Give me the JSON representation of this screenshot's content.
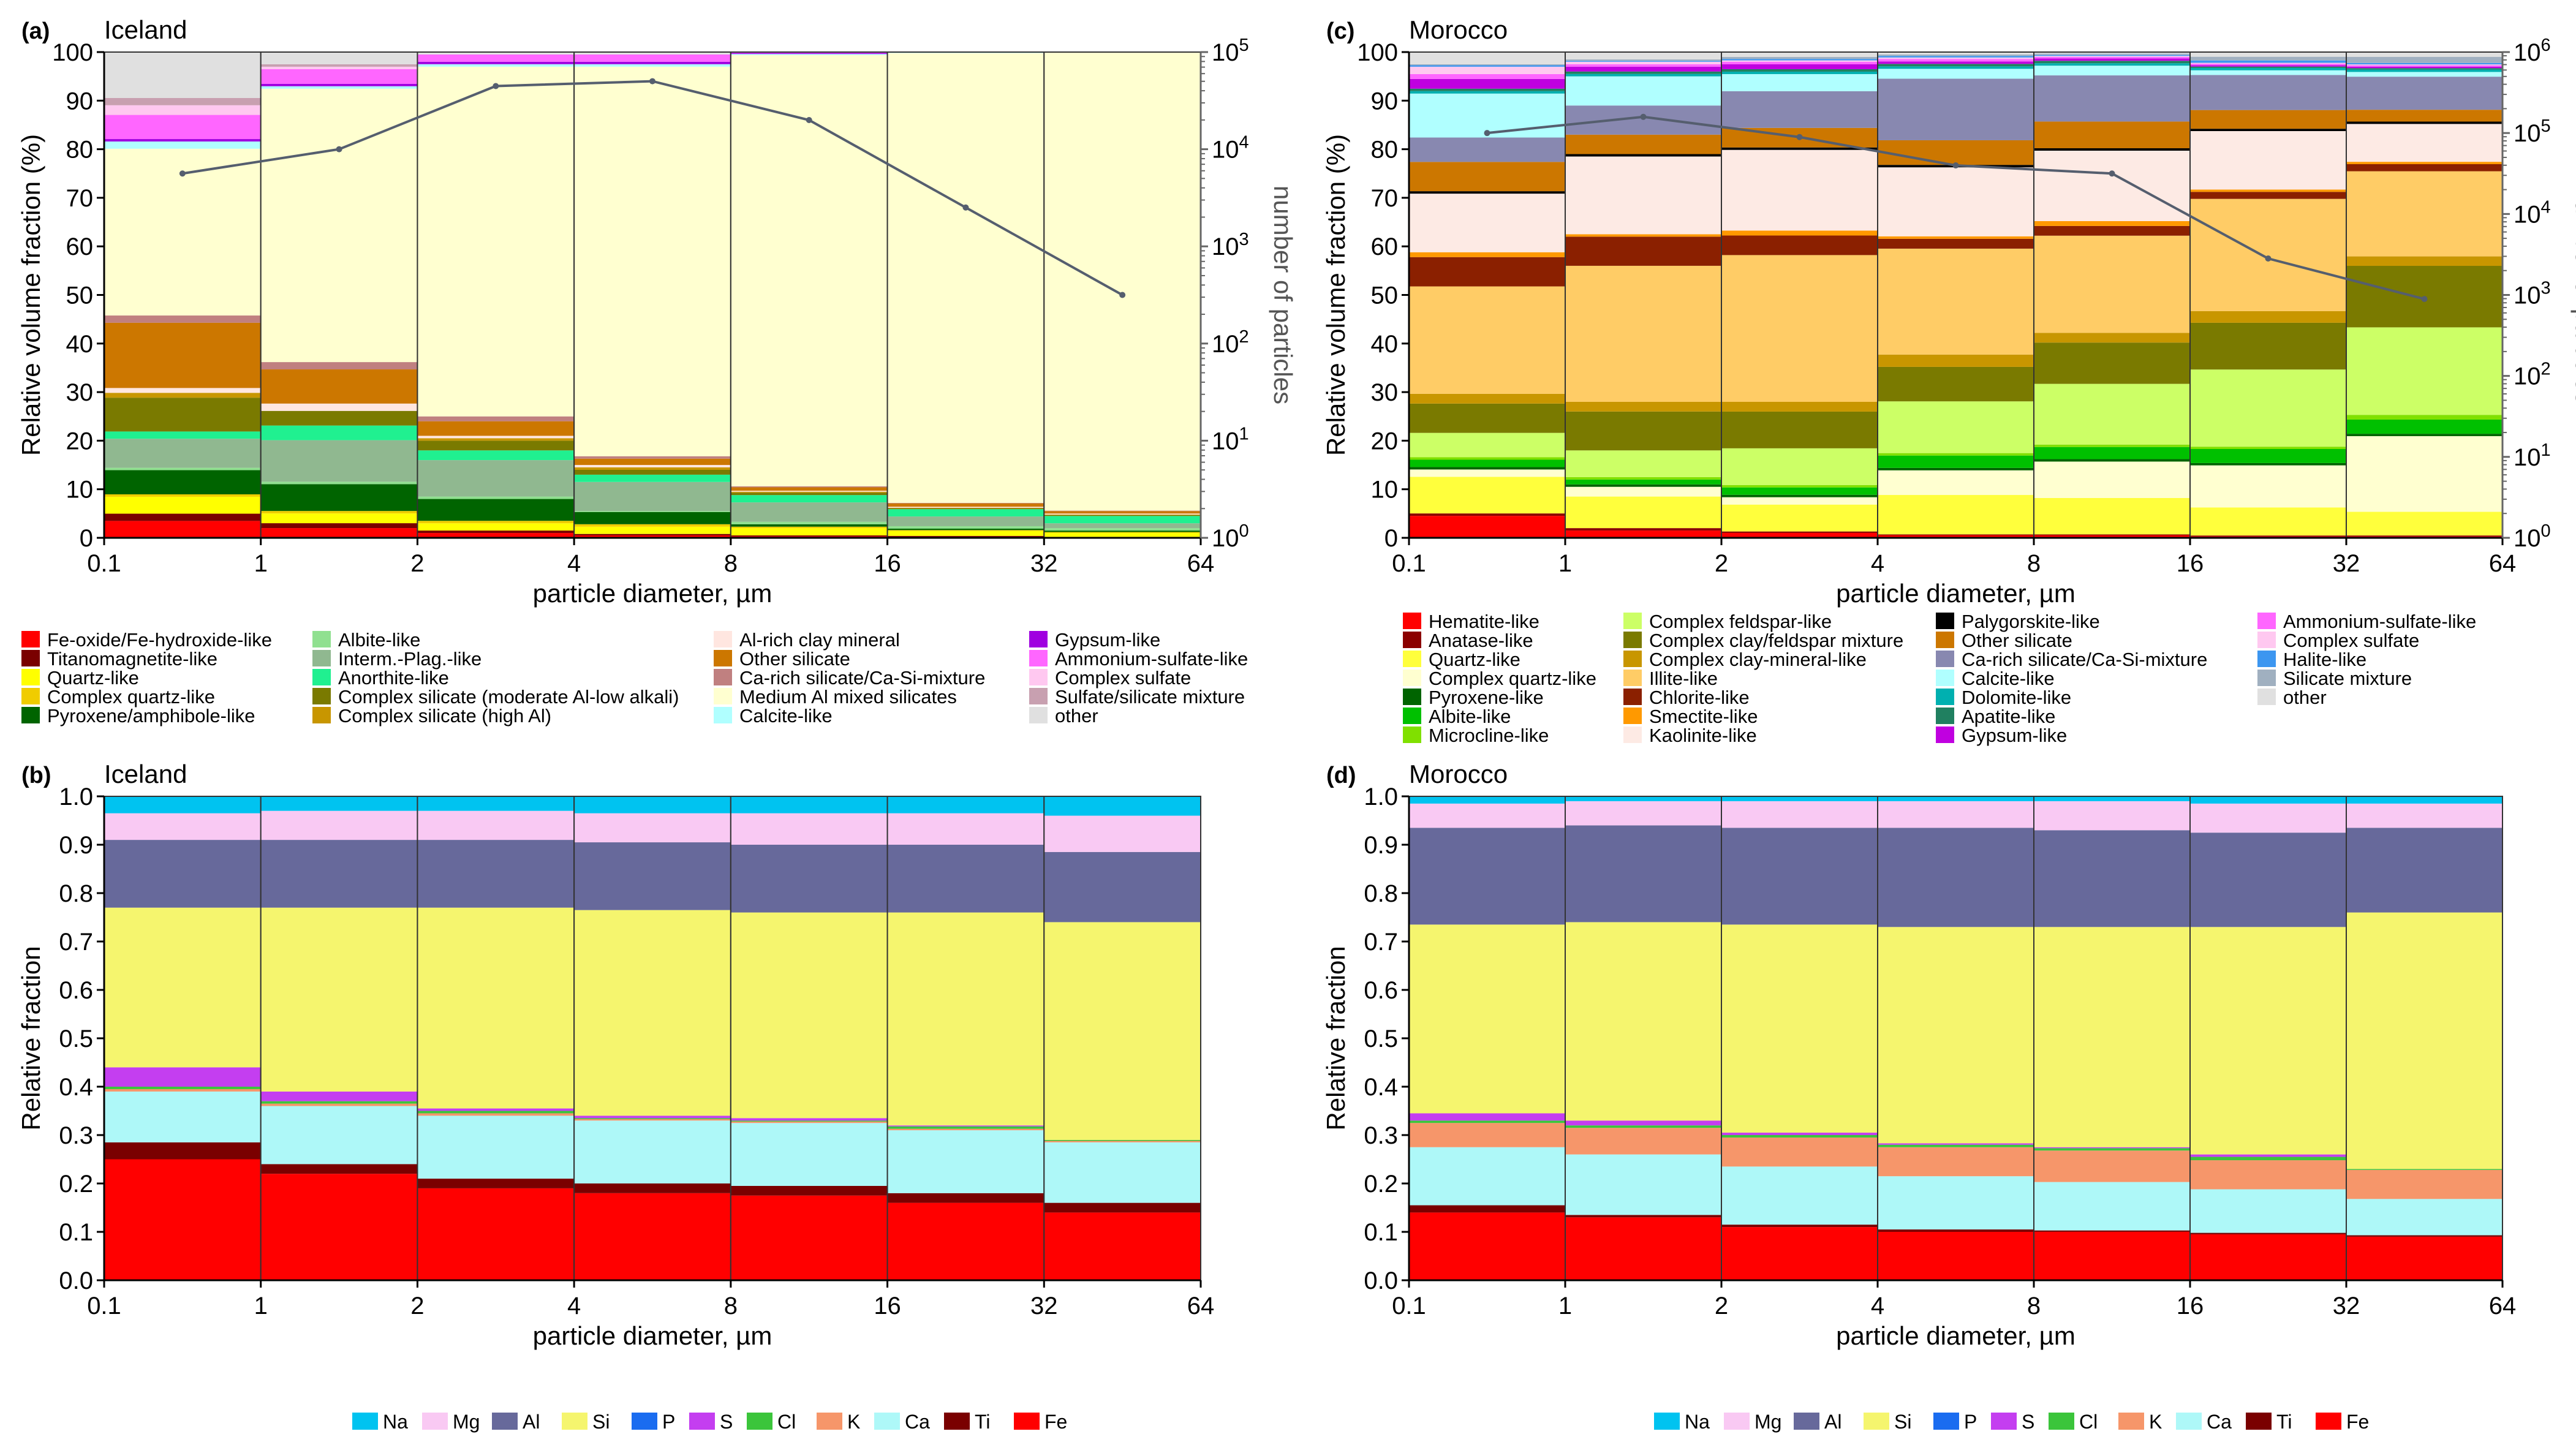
{
  "figure": {
    "element_legend": [
      "Na",
      "Mg",
      "Al",
      "Si",
      "P",
      "S",
      "Cl",
      "K",
      "Ca",
      "Ti",
      "Fe"
    ],
    "element_colors": [
      "#00c3f0",
      "#f9c9f3",
      "#67699b",
      "#f5f56e",
      "#1a6cf0",
      "#c43ef0",
      "#3bc53b",
      "#f6966a",
      "#aef8f8",
      "#7a0000",
      "#ff0000"
    ]
  },
  "chart_data": [
    {
      "id": "a",
      "panel_label": "(a)",
      "title": "Iceland",
      "type": "bar",
      "xlabel": "particle diameter, µm",
      "ylabel": "Relative volume fraction (%)",
      "y2label": "number of particles",
      "xticks": [
        "0.1",
        "1",
        "2",
        "4",
        "8",
        "16",
        "32",
        "64"
      ],
      "yticks": [
        "0",
        "10",
        "20",
        "30",
        "40",
        "50",
        "60",
        "70",
        "80",
        "90",
        "100"
      ],
      "ylim": [
        0,
        100
      ],
      "y2ticks": [
        "10^0",
        "10^1",
        "10^2",
        "10^3",
        "10^4",
        "10^5"
      ],
      "y2lim_log10": [
        0,
        5
      ],
      "categories": [
        "0.1-1",
        "1-2",
        "2-4",
        "4-8",
        "8-16",
        "16-32",
        "32-64"
      ],
      "classes": [
        "Fe-oxide/Fe-hydroxide-like",
        "Titanomagnetite-like",
        "Quartz-like",
        "Complex quartz-like",
        "Pyroxene/amphibole-like",
        "Albite-like",
        "Interm.-Plag.-like",
        "Anorthite-like",
        "Complex silicate (moderate Al-low alkali)",
        "Complex silicate (high Al)",
        "Al-rich clay mineral",
        "Other silicate",
        "Ca-rich silicate/Ca-Si-mixture",
        "Medium Al mixed silicates",
        "Calcite-like",
        "Gypsum-like",
        "Ammonium-sulfate-like",
        "Complex sulfate",
        "Sulfate/silicate mixture",
        "other"
      ],
      "colors": [
        "#ff0000",
        "#7a0000",
        "#ffff00",
        "#f0cc00",
        "#006400",
        "#90e090",
        "#90b890",
        "#20f090",
        "#7a7a00",
        "#c89600",
        "#ffe6e0",
        "#cc7700",
        "#c08080",
        "#ffffd0",
        "#b0ffff",
        "#a000e0",
        "#ff66ff",
        "#ffc8f0",
        "#c8a0b0",
        "#e0e0e0"
      ],
      "legend_columns": [
        [
          "Fe-oxide/Fe-hydroxide-like",
          "Titanomagnetite-like",
          "Quartz-like",
          "Complex quartz-like",
          "Pyroxene/amphibole-like"
        ],
        [
          "Albite-like",
          "Interm.-Plag.-like",
          "Anorthite-like",
          "Complex silicate (moderate Al-low alkali)",
          "Complex silicate (high Al)"
        ],
        [
          "Al-rich clay mineral",
          "Other silicate",
          "Ca-rich silicate/Ca-Si-mixture",
          "Medium Al mixed silicates",
          "Calcite-like"
        ],
        [
          "Gypsum-like",
          "Ammonium-sulfate-like",
          "Complex sulfate",
          "Sulfate/silicate mixture",
          "other"
        ]
      ],
      "stacks": [
        [
          3.5,
          1.5,
          3.5,
          0.5,
          5,
          0.5,
          6,
          1.5,
          7,
          1,
          1,
          13.5,
          1.5,
          34.5,
          1.5,
          0.5,
          5,
          2,
          1.5,
          9.5
        ],
        [
          2,
          1,
          2,
          0.5,
          5.5,
          0.5,
          8.5,
          3,
          3,
          0,
          1.5,
          7,
          1.5,
          56,
          0.5,
          0.5,
          3,
          0.5,
          0.5,
          2.5
        ],
        [
          1,
          0.5,
          1.5,
          0.5,
          4.5,
          0.5,
          7.5,
          2,
          2,
          0.5,
          0.5,
          3,
          1,
          72,
          0.5,
          0.5,
          1.5,
          0,
          0,
          0.5
        ],
        [
          0.5,
          0.3,
          1.5,
          0.5,
          2.5,
          0.2,
          6,
          1.5,
          1,
          0.5,
          0.5,
          1.3,
          0.5,
          80.2,
          0.5,
          0.5,
          1.5,
          0,
          0,
          0.5
        ],
        [
          0.3,
          0.2,
          1.5,
          0.3,
          0.5,
          0.5,
          4,
          1.5,
          0.5,
          0.2,
          0.2,
          0.7,
          0.2,
          88.8,
          0.2,
          0.2,
          0.2,
          0,
          0,
          0
        ],
        [
          0.2,
          0.2,
          1,
          0.2,
          0.3,
          0.5,
          2,
          1.5,
          0.2,
          0.1,
          0.2,
          0.7,
          0.1,
          92.6,
          0.1,
          0.1,
          0,
          0,
          0,
          0
        ],
        [
          0.1,
          0.1,
          0.8,
          0.2,
          0.3,
          0.5,
          1,
          1.5,
          0.2,
          0.1,
          0.2,
          0.5,
          0.1,
          94.4,
          0,
          0,
          0,
          0,
          0,
          0
        ]
      ],
      "particle_counts": {
        "x": [
          0.55,
          1.5,
          3,
          6,
          12,
          24,
          48
        ],
        "log10_counts": [
          3.75,
          4.0,
          4.65,
          4.7,
          4.3,
          3.4,
          2.5
        ]
      }
    },
    {
      "id": "b",
      "panel_label": "(b)",
      "title": "Iceland",
      "type": "bar",
      "xlabel": "particle diameter, µm",
      "ylabel": "Relative fraction",
      "xticks": [
        "0.1",
        "1",
        "2",
        "4",
        "8",
        "16",
        "32",
        "64"
      ],
      "yticks": [
        "0.0",
        "0.1",
        "0.2",
        "0.3",
        "0.4",
        "0.5",
        "0.6",
        "0.7",
        "0.8",
        "0.9",
        "1.0"
      ],
      "ylim": [
        0,
        1
      ],
      "categories": [
        "0.1-1",
        "1-2",
        "2-4",
        "4-8",
        "8-16",
        "16-32",
        "32-64"
      ],
      "series_order_bottom_up": [
        "Fe",
        "Ti",
        "Ca",
        "K",
        "Cl",
        "S",
        "P",
        "Si",
        "Al",
        "Mg",
        "Na"
      ],
      "stacks": [
        [
          0.25,
          0.035,
          0.105,
          0.005,
          0.005,
          0.04,
          0,
          0.33,
          0.14,
          0.055,
          0.035
        ],
        [
          0.22,
          0.02,
          0.12,
          0.005,
          0.005,
          0.02,
          0,
          0.38,
          0.14,
          0.06,
          0.03
        ],
        [
          0.19,
          0.02,
          0.13,
          0.005,
          0.005,
          0.005,
          0,
          0.415,
          0.14,
          0.06,
          0.03
        ],
        [
          0.18,
          0.02,
          0.13,
          0.003,
          0.002,
          0.005,
          0,
          0.425,
          0.14,
          0.06,
          0.035
        ],
        [
          0.175,
          0.02,
          0.13,
          0.003,
          0.002,
          0.005,
          0,
          0.425,
          0.14,
          0.065,
          0.035
        ],
        [
          0.16,
          0.02,
          0.13,
          0.003,
          0.005,
          0.002,
          0,
          0.44,
          0.14,
          0.065,
          0.035
        ],
        [
          0.14,
          0.02,
          0.125,
          0.003,
          0.002,
          0,
          0,
          0.45,
          0.145,
          0.075,
          0.04
        ]
      ]
    },
    {
      "id": "c",
      "panel_label": "(c)",
      "title": "Morocco",
      "type": "bar",
      "xlabel": "particle diameter, µm",
      "ylabel": "Relative volume fraction (%)",
      "y2label": "number of particles",
      "xticks": [
        "0.1",
        "1",
        "2",
        "4",
        "8",
        "16",
        "32",
        "64"
      ],
      "yticks": [
        "0",
        "10",
        "20",
        "30",
        "40",
        "50",
        "60",
        "70",
        "80",
        "90",
        "100"
      ],
      "ylim": [
        0,
        100
      ],
      "y2ticks": [
        "10^0",
        "10^1",
        "10^2",
        "10^3",
        "10^4",
        "10^5",
        "10^6"
      ],
      "y2lim_log10": [
        0,
        6
      ],
      "categories": [
        "0.1-1",
        "1-2",
        "2-4",
        "4-8",
        "8-16",
        "16-32",
        "32-64"
      ],
      "classes": [
        "Hematite-like",
        "Anatase-like",
        "Quartz-like",
        "Complex quartz-like",
        "Pyroxene-like",
        "Albite-like",
        "Microcline-like",
        "Complex feldspar-like",
        "Complex clay/feldspar mixture",
        "Complex clay-mineral-like",
        "Illite-like",
        "Chlorite-like",
        "Smectite-like",
        "Kaolinite-like",
        "Palygorskite-like",
        "Other silicate",
        "Ca-rich silicate/Ca-Si-mixture",
        "Calcite-like",
        "Dolomite-like",
        "Apatite-like",
        "Gypsum-like",
        "Ammonium-sulfate-like",
        "Complex sulfate",
        "Halite-like",
        "Silicate mixture",
        "other"
      ],
      "colors": [
        "#ff0000",
        "#8b0000",
        "#ffff3c",
        "#ffffd0",
        "#006400",
        "#00c000",
        "#80e000",
        "#ccff66",
        "#7a7a00",
        "#c89600",
        "#ffcc66",
        "#8b2000",
        "#ff9900",
        "#fdeae4",
        "#000000",
        "#cc7700",
        "#8888b0",
        "#b0ffff",
        "#00b0b0",
        "#208060",
        "#c000e0",
        "#ff66ff",
        "#ffc8f0",
        "#3c96f0",
        "#a0b0c0",
        "#e0e0e0"
      ],
      "legend_columns": [
        [
          "Hematite-like",
          "Anatase-like",
          "Quartz-like",
          "Complex quartz-like",
          "Pyroxene-like",
          "Albite-like",
          "Microcline-like"
        ],
        [
          "Complex feldspar-like",
          "Complex clay/feldspar mixture",
          "Complex clay-mineral-like",
          "Illite-like",
          "Chlorite-like",
          "Smectite-like",
          "Kaolinite-like"
        ],
        [
          "Palygorskite-like",
          "Other silicate",
          "Ca-rich silicate/Ca-Si-mixture",
          "Calcite-like",
          "Dolomite-like",
          "Apatite-like",
          "Gypsum-like"
        ],
        [
          "Ammonium-sulfate-like",
          "Complex sulfate",
          "Halite-like",
          "Silicate mixture",
          "other"
        ]
      ],
      "stacks": [
        [
          4.5,
          0.5,
          7.5,
          1.5,
          0.5,
          1.5,
          0.5,
          5,
          6,
          2,
          22,
          6,
          1,
          12,
          0.5,
          6,
          5,
          9,
          0.5,
          0.5,
          2,
          1,
          1.5,
          0.3,
          0.2,
          2.5
        ],
        [
          1.5,
          0.5,
          6.5,
          2,
          0.5,
          1,
          0.5,
          5.5,
          8,
          2,
          28,
          6,
          0.5,
          16,
          0.5,
          4,
          6,
          6,
          0.5,
          0.5,
          1,
          0.5,
          0.5,
          0.2,
          0.3,
          1.5
        ],
        [
          1,
          0.3,
          5.5,
          1.5,
          0.5,
          1.5,
          0.5,
          7.5,
          7.5,
          2,
          30,
          4,
          1,
          16.5,
          0.5,
          4,
          7.5,
          3.5,
          0.5,
          0.5,
          1,
          0.5,
          0.3,
          0.3,
          0.4,
          1
        ],
        [
          0.5,
          0.2,
          8,
          5,
          0.5,
          2.5,
          0.5,
          10.5,
          7,
          2.5,
          21.5,
          2,
          0.5,
          14,
          0.5,
          5,
          12.5,
          2,
          0.5,
          0.5,
          0.5,
          0.5,
          0.3,
          0.3,
          0.3,
          0.5
        ],
        [
          0.5,
          0.2,
          7.5,
          7.5,
          0.5,
          2.5,
          0.5,
          12.5,
          8.5,
          2,
          20,
          2,
          1,
          14.5,
          0.5,
          5.5,
          9.5,
          2,
          0.5,
          0.5,
          0.5,
          0.3,
          0.2,
          0.2,
          0.3,
          0.3
        ],
        [
          0.3,
          0.2,
          6,
          9,
          0.5,
          3,
          0.5,
          16.5,
          10,
          2.5,
          24,
          1.5,
          0.5,
          12.5,
          0.5,
          4,
          7.5,
          1,
          0.5,
          0.3,
          0.3,
          0.3,
          0.2,
          0.5,
          0.8,
          1
        ],
        [
          0.3,
          0.2,
          5,
          16,
          0.5,
          3,
          1,
          18.5,
          13,
          2,
          18,
          1.5,
          0.5,
          8,
          0.5,
          2.5,
          7,
          1,
          0.5,
          0.3,
          0.3,
          0.3,
          0.2,
          0.3,
          1.3,
          1
        ]
      ],
      "particle_counts": {
        "x": [
          0.55,
          1.5,
          3,
          6,
          12,
          24,
          48
        ],
        "log10_counts": [
          5.0,
          5.2,
          4.95,
          4.6,
          4.5,
          3.45,
          2.95
        ]
      }
    },
    {
      "id": "d",
      "panel_label": "(d)",
      "title": "Morocco",
      "type": "bar",
      "xlabel": "particle diameter, µm",
      "ylabel": "Relative fraction",
      "xticks": [
        "0.1",
        "1",
        "2",
        "4",
        "8",
        "16",
        "32",
        "64"
      ],
      "yticks": [
        "0.0",
        "0.1",
        "0.2",
        "0.3",
        "0.4",
        "0.5",
        "0.6",
        "0.7",
        "0.8",
        "0.9",
        "1.0"
      ],
      "ylim": [
        0,
        1
      ],
      "categories": [
        "0.1-1",
        "1-2",
        "2-4",
        "4-8",
        "8-16",
        "16-32",
        "32-64"
      ],
      "series_order_bottom_up": [
        "Fe",
        "Ti",
        "Ca",
        "K",
        "Cl",
        "S",
        "P",
        "Si",
        "Al",
        "Mg",
        "Na"
      ],
      "stacks": [
        [
          0.14,
          0.015,
          0.12,
          0.05,
          0.005,
          0.015,
          0,
          0.39,
          0.2,
          0.05,
          0.015
        ],
        [
          0.13,
          0.005,
          0.125,
          0.055,
          0.005,
          0.01,
          0,
          0.41,
          0.2,
          0.05,
          0.01
        ],
        [
          0.11,
          0.005,
          0.12,
          0.06,
          0.005,
          0.005,
          0,
          0.43,
          0.2,
          0.055,
          0.01
        ],
        [
          0.1,
          0.005,
          0.11,
          0.06,
          0.005,
          0.003,
          0,
          0.447,
          0.205,
          0.055,
          0.01
        ],
        [
          0.1,
          0.003,
          0.1,
          0.065,
          0.005,
          0.002,
          0,
          0.455,
          0.2,
          0.06,
          0.01
        ],
        [
          0.095,
          0.003,
          0.09,
          0.06,
          0.007,
          0.005,
          0,
          0.47,
          0.195,
          0.06,
          0.015
        ],
        [
          0.09,
          0.003,
          0.075,
          0.06,
          0.002,
          0,
          0,
          0.53,
          0.175,
          0.05,
          0.015
        ]
      ]
    }
  ]
}
